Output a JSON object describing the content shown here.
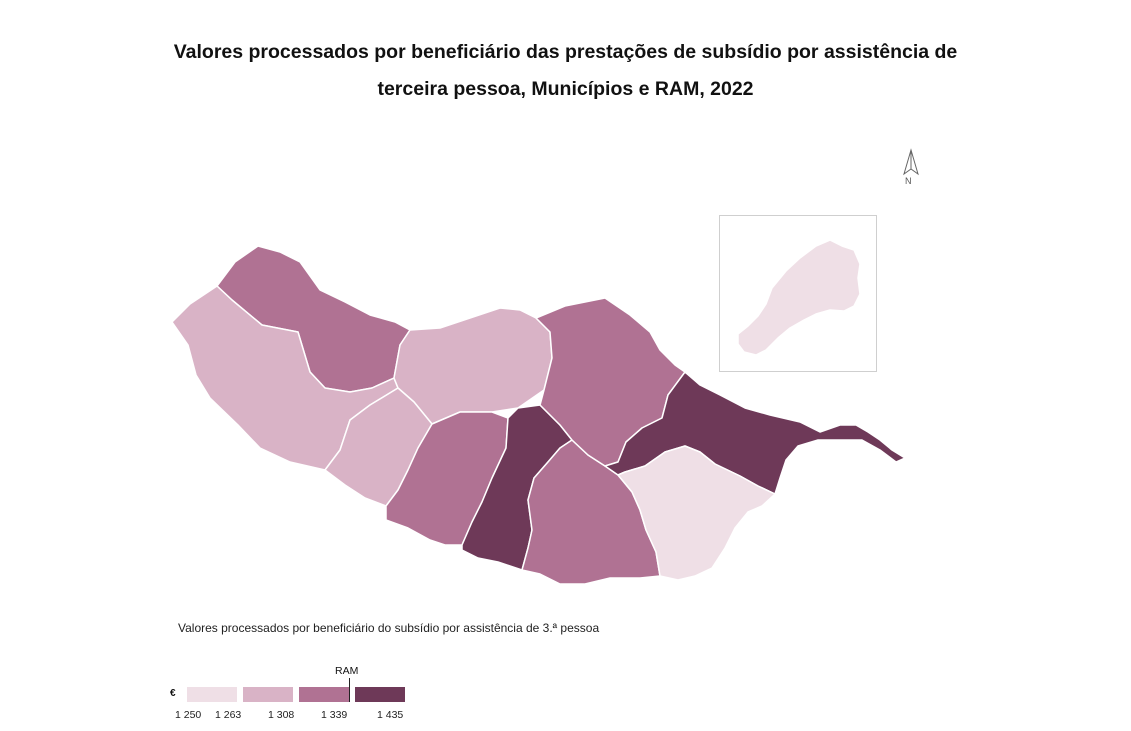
{
  "title_line1": "Valores processados por beneficiário das prestações de subsídio por assistência de",
  "title_line2": "terceira pessoa, Municípios e RAM, 2022",
  "compass_label": "N",
  "legend": {
    "title": "Valores processados por beneficiário do subsídio por assistência de 3.ª pessoa",
    "unit": "€",
    "ticks": [
      "1 250",
      "1 263",
      "1 308",
      "1 339",
      "1 435"
    ],
    "ram_label": "RAM",
    "colors": [
      "#efdfe6",
      "#d9b3c6",
      "#b07293",
      "#6e3958"
    ]
  },
  "colors": {
    "class1": "#efdfe6",
    "class2": "#d9b3c6",
    "class3": "#b07293",
    "class4": "#6e3958",
    "border": "#ffffff"
  },
  "municipalities": [
    {
      "id": "porto-moniz",
      "class": 3
    },
    {
      "id": "calheta",
      "class": 2
    },
    {
      "id": "sao-vicente",
      "class": 2
    },
    {
      "id": "ponta-do-sol",
      "class": 2
    },
    {
      "id": "ribeira-brava",
      "class": 3
    },
    {
      "id": "camara-de-lobos",
      "class": 4
    },
    {
      "id": "funchal",
      "class": 3
    },
    {
      "id": "santana",
      "class": 3
    },
    {
      "id": "machico",
      "class": 4
    },
    {
      "id": "santa-cruz",
      "class": 1
    },
    {
      "id": "porto-santo",
      "class": 1
    }
  ]
}
